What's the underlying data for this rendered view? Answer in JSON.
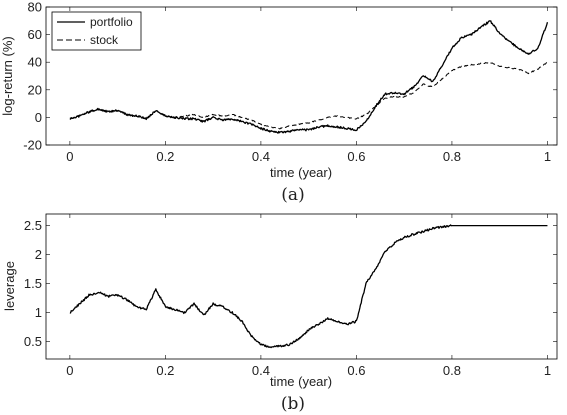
{
  "chart_data": [
    {
      "type": "line",
      "panel": "a",
      "caption": "(a)",
      "xlabel": "time (year)",
      "ylabel": "log-return (%)",
      "xlim": [
        -0.05,
        1.02
      ],
      "ylim": [
        -20,
        80
      ],
      "xticks": [
        0,
        0.2,
        0.4,
        0.6,
        0.8,
        1
      ],
      "xtick_labels": [
        "0",
        "0.2",
        "0.4",
        "0.6",
        "0.8",
        "1"
      ],
      "yticks": [
        -20,
        0,
        20,
        40,
        60,
        80
      ],
      "ytick_labels": [
        "-20",
        "0",
        "20",
        "40",
        "60",
        "80"
      ],
      "grid": false,
      "legend": "top-left",
      "series": [
        {
          "name": "portfolio",
          "style": "solid",
          "x": [
            0,
            0.02,
            0.04,
            0.06,
            0.08,
            0.1,
            0.12,
            0.14,
            0.16,
            0.18,
            0.2,
            0.22,
            0.24,
            0.26,
            0.28,
            0.3,
            0.32,
            0.34,
            0.36,
            0.38,
            0.4,
            0.42,
            0.44,
            0.46,
            0.48,
            0.5,
            0.52,
            0.54,
            0.56,
            0.58,
            0.6,
            0.62,
            0.64,
            0.66,
            0.68,
            0.7,
            0.72,
            0.74,
            0.76,
            0.78,
            0.8,
            0.82,
            0.84,
            0.86,
            0.88,
            0.9,
            0.92,
            0.94,
            0.96,
            0.98,
            1.0
          ],
          "y": [
            -1,
            1,
            4,
            6,
            4,
            5,
            2,
            1,
            -1,
            5,
            1,
            0,
            -1,
            -1,
            -3,
            0,
            -2,
            -1,
            -3,
            -5,
            -8,
            -10,
            -11,
            -10,
            -9,
            -9,
            -7,
            -6,
            -7,
            -8,
            -9,
            -3,
            8,
            17,
            18,
            17,
            22,
            30,
            26,
            38,
            50,
            58,
            60,
            65,
            70,
            61,
            55,
            50,
            46,
            50,
            69
          ]
        },
        {
          "name": "stock",
          "style": "dashed",
          "x": [
            0,
            0.02,
            0.04,
            0.06,
            0.08,
            0.1,
            0.12,
            0.14,
            0.16,
            0.18,
            0.2,
            0.22,
            0.24,
            0.26,
            0.28,
            0.3,
            0.32,
            0.34,
            0.36,
            0.38,
            0.4,
            0.42,
            0.44,
            0.46,
            0.48,
            0.5,
            0.52,
            0.54,
            0.56,
            0.58,
            0.6,
            0.62,
            0.64,
            0.66,
            0.68,
            0.7,
            0.72,
            0.74,
            0.76,
            0.78,
            0.8,
            0.82,
            0.84,
            0.86,
            0.88,
            0.9,
            0.92,
            0.94,
            0.96,
            0.98,
            1.0
          ],
          "y": [
            -1,
            1,
            4,
            6,
            4,
            5,
            2,
            1,
            -1,
            5,
            1,
            0,
            1,
            2,
            0,
            2,
            1,
            2,
            0,
            -2,
            -5,
            -7,
            -8,
            -6,
            -5,
            -4,
            -2,
            0,
            1,
            0,
            -1,
            2,
            8,
            14,
            15,
            15,
            18,
            24,
            22,
            28,
            34,
            37,
            38,
            39,
            40,
            37,
            36,
            35,
            32,
            35,
            40
          ]
        }
      ]
    },
    {
      "type": "line",
      "panel": "b",
      "caption": "(b)",
      "xlabel": "time (year)",
      "ylabel": "leverage",
      "xlim": [
        -0.05,
        1.02
      ],
      "ylim": [
        0.2,
        2.7
      ],
      "xticks": [
        0,
        0.2,
        0.4,
        0.6,
        0.8,
        1
      ],
      "xtick_labels": [
        "0",
        "0.2",
        "0.4",
        "0.6",
        "0.8",
        "1"
      ],
      "yticks": [
        0.5,
        1,
        1.5,
        2,
        2.5
      ],
      "ytick_labels": [
        "0.5",
        "1",
        "1.5",
        "2",
        "2.5"
      ],
      "grid": false,
      "series": [
        {
          "style": "solid",
          "x": [
            0,
            0.02,
            0.04,
            0.06,
            0.08,
            0.1,
            0.12,
            0.14,
            0.16,
            0.18,
            0.2,
            0.22,
            0.24,
            0.26,
            0.28,
            0.3,
            0.32,
            0.34,
            0.36,
            0.38,
            0.4,
            0.42,
            0.44,
            0.46,
            0.48,
            0.5,
            0.52,
            0.54,
            0.56,
            0.58,
            0.6,
            0.62,
            0.64,
            0.66,
            0.68,
            0.7,
            0.72,
            0.74,
            0.76,
            0.78,
            0.8,
            0.82,
            0.84,
            0.86,
            0.88,
            0.9,
            0.92,
            0.94,
            0.96,
            0.98,
            1.0
          ],
          "y": [
            1.0,
            1.15,
            1.3,
            1.35,
            1.28,
            1.3,
            1.22,
            1.1,
            1.05,
            1.4,
            1.1,
            1.05,
            1.0,
            1.15,
            0.95,
            1.15,
            1.1,
            1.0,
            0.85,
            0.6,
            0.45,
            0.4,
            0.42,
            0.45,
            0.55,
            0.7,
            0.8,
            0.9,
            0.85,
            0.8,
            0.85,
            1.5,
            1.75,
            2.05,
            2.2,
            2.3,
            2.35,
            2.4,
            2.45,
            2.48,
            2.5,
            2.5,
            2.5,
            2.5,
            2.5,
            2.5,
            2.5,
            2.5,
            2.5,
            2.5,
            2.5
          ]
        }
      ]
    }
  ]
}
